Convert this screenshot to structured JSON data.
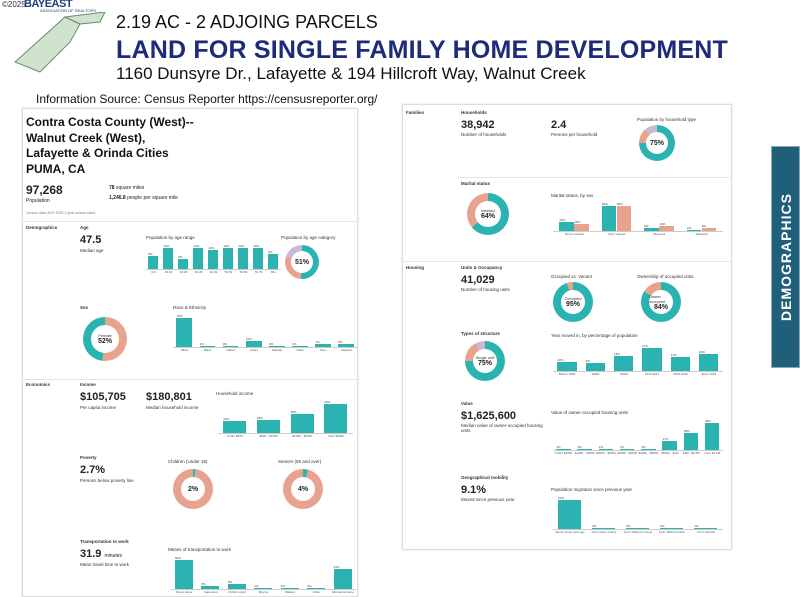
{
  "copyright": "©2025",
  "logo": {
    "name": "BAYEAST",
    "sub": "ASSOCIATION OF REALTORS"
  },
  "header": {
    "line1": "2.19 AC - 2 ADJOING PARCELS",
    "line2": "LAND FOR SINGLE FAMILY HOME DEVELOPMENT",
    "line3": "1160 Dunsyre Dr., Lafayette  & 194 Hillcroft Way, Walnut Creek"
  },
  "source": "Information Source: Census Reporter  https://censusreporter.org/",
  "sidebar_label": "DEMOGRAPHICS",
  "left": {
    "title_lines": [
      "Contra Costa County (West)--",
      "Walnut Creek (West),",
      "Lafayette & Orinda Cities",
      "PUMA, CA"
    ],
    "population": "97,268",
    "population_label": "Population",
    "sqmi": "78",
    "sqmi_label": "square miles",
    "density": "1,246.8",
    "density_label": "people per square mile",
    "census_note": "Census data:  ACS 2023 1-year unless noted",
    "sections": {
      "demographics": "Demographics",
      "age": "Age",
      "median_age": "47.5",
      "median_age_label": "Median age",
      "age_cat_title": "Population by age range",
      "age_cat_categories": [
        "0-9",
        "10-19",
        "20-29",
        "30-39",
        "40-49",
        "50-59",
        "60-69",
        "70-79",
        "80+"
      ],
      "age_cat_values": [
        8,
        13,
        6,
        13,
        12,
        13,
        13,
        13,
        9
      ],
      "age_donut_title": "Population by age category",
      "age_donut_pct": "51%",
      "sex": "Sex",
      "female_pct": "52%",
      "female_label": "Female",
      "race_title": "Race & Ethnicity",
      "race_categories": [
        "White",
        "Black",
        "Native",
        "Asian",
        "Islander",
        "Other",
        "Two+",
        "Hispanic"
      ],
      "race_values": [
        70,
        2,
        0,
        15,
        0,
        1,
        7,
        8
      ],
      "economics": "Economics",
      "income": "Income",
      "per_capita": "$105,705",
      "per_capita_label": "Per capita income",
      "median_hh": "$180,801",
      "median_hh_label": "Median household income",
      "hh_income_title": "Household income",
      "hh_income_categories": [
        "Under $50K",
        "$50K - $100K",
        "$100K - $200K",
        "Over $200K"
      ],
      "hh_income_values": [
        16,
        18,
        26,
        40
      ],
      "poverty": "Poverty",
      "poverty_pct": "2.7%",
      "poverty_label": "Persons below poverty line",
      "children_title": "Children (Under 18)",
      "children_pct": "2%",
      "seniors_title": "Seniors (65 and over)",
      "seniors_pct": "4%",
      "transport": "Transportation to work",
      "commute": "31.9",
      "commute_unit": "minutes",
      "commute_label": "Mean travel time to work",
      "means_title": "Means of transportation to work",
      "means_categories": [
        "Drove alone",
        "Carpooled",
        "Public transit",
        "Bicycle",
        "Walked",
        "Other",
        "Worked at home"
      ],
      "means_values": [
        50,
        5,
        8,
        1,
        2,
        2,
        34
      ]
    }
  },
  "right": {
    "families": "Families",
    "households": "Households",
    "num_households": "38,942",
    "num_households_label": "Number of households",
    "persons_per_hh": "2.4",
    "persons_per_hh_label": "Persons per household",
    "hh_type_title": "Population by household type",
    "hh_type_pct": "75%",
    "marital": "Marital status",
    "married_pct": "64%",
    "married_label": "Married",
    "marital_sex_title": "Marital status, by sex",
    "marital_sex_categories": [
      "Never married",
      "Now married",
      "Divorced",
      "Widowed"
    ],
    "marital_sex_values": [
      [
        26,
        18
      ],
      [
        69,
        69
      ],
      [
        8,
        13
      ],
      [
        2,
        9
      ]
    ],
    "housing": "Housing",
    "units": "Units & Occupancy",
    "num_units": "41,029",
    "num_units_label": "Number of housing units",
    "occupied_title": "Occupied vs. Vacant",
    "occupied_pct": "95%",
    "occupied_label": "Occupied",
    "owner_title": "Ownership of occupied units",
    "owner_pct": "84%",
    "owner_label": "Owner occupied",
    "structure": "Types of structure",
    "single_unit_pct": "75%",
    "single_unit_label": "Single unit",
    "year_moved_title": "Year moved in, by percentage of population",
    "year_moved_categories": [
      "Before 1990",
      "1990s",
      "2000s",
      "2010-2017",
      "2018-2020",
      "Since 2021"
    ],
    "year_moved_values": [
      10,
      9,
      18,
      27,
      17,
      20
    ],
    "value": "Value",
    "median_value": "$1,625,600",
    "median_value_label": "Median value of owner-occupied housing units",
    "value_title": "Value of owner-occupied housing units",
    "value_categories": [
      "Under $100K",
      "$100K - $200K",
      "$200K - $300K",
      "$300K - $400K",
      "$400K - $500K",
      "$500K - $1M",
      "$1M - $1.5M",
      "Over $1.5M"
    ],
    "value_values": [
      1,
      1,
      1,
      1,
      1,
      17,
      30,
      49
    ],
    "mobility": "Geographical mobility",
    "moved_pct": "9.1%",
    "moved_label": "Moved since previous year",
    "mobility_title": "Population migration since previous year",
    "mobility_categories": [
      "Same house year ago",
      "From same county",
      "From different county",
      "From different state",
      "From abroad"
    ],
    "mobility_values": [
      91,
      3,
      3,
      2,
      1
    ]
  }
}
